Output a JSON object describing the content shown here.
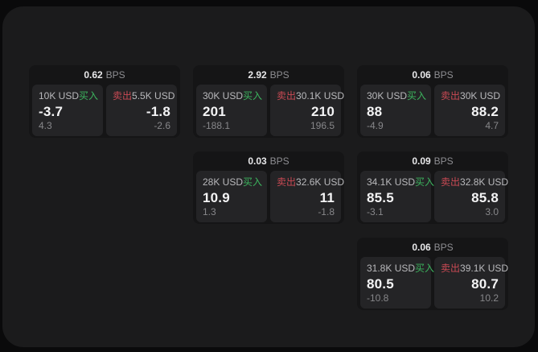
{
  "colors": {
    "background": "#0a0a0b",
    "panel": "#1b1b1c",
    "card": "#151516",
    "subpanel": "#242426",
    "buy-green": "#3cb45e",
    "sell-red": "#c94a54",
    "text-primary": "#f4f4f5",
    "text-secondary": "#b9b9bc",
    "text-muted": "#87878a",
    "text-header": "#e8e8ea",
    "text-unit": "#8e8e92"
  },
  "labels": {
    "bps_unit": "BPS",
    "buy": "买入",
    "sell": "卖出"
  },
  "cards": [
    {
      "bps": "0.62",
      "row": 1,
      "col": 1,
      "buy": {
        "amount": "10K USD",
        "value": "-3.7",
        "sub_value": "4.3"
      },
      "sell": {
        "amount": "5.5K USD",
        "value": "-1.8",
        "sub_value": "-2.6"
      }
    },
    {
      "bps": "2.92",
      "row": 1,
      "col": 2,
      "buy": {
        "amount": "30K USD",
        "value": "201",
        "sub_value": "-188.1"
      },
      "sell": {
        "amount": "30.1K USD",
        "value": "210",
        "sub_value": "196.5"
      }
    },
    {
      "bps": "0.06",
      "row": 1,
      "col": 3,
      "buy": {
        "amount": "30K USD",
        "value": "88",
        "sub_value": "-4.9"
      },
      "sell": {
        "amount": "30K USD",
        "value": "88.2",
        "sub_value": "4.7"
      }
    },
    {
      "bps": "0.03",
      "row": 2,
      "col": 2,
      "buy": {
        "amount": "28K USD",
        "value": "10.9",
        "sub_value": "1.3"
      },
      "sell": {
        "amount": "32.6K USD",
        "value": "11",
        "sub_value": "-1.8"
      }
    },
    {
      "bps": "0.09",
      "row": 2,
      "col": 3,
      "buy": {
        "amount": "34.1K USD",
        "value": "85.5",
        "sub_value": "-3.1"
      },
      "sell": {
        "amount": "32.8K USD",
        "value": "85.8",
        "sub_value": "3.0"
      }
    },
    {
      "bps": "0.06",
      "row": 3,
      "col": 3,
      "buy": {
        "amount": "31.8K USD",
        "value": "80.5",
        "sub_value": "-10.8"
      },
      "sell": {
        "amount": "39.1K USD",
        "value": "80.7",
        "sub_value": "10.2"
      }
    }
  ]
}
